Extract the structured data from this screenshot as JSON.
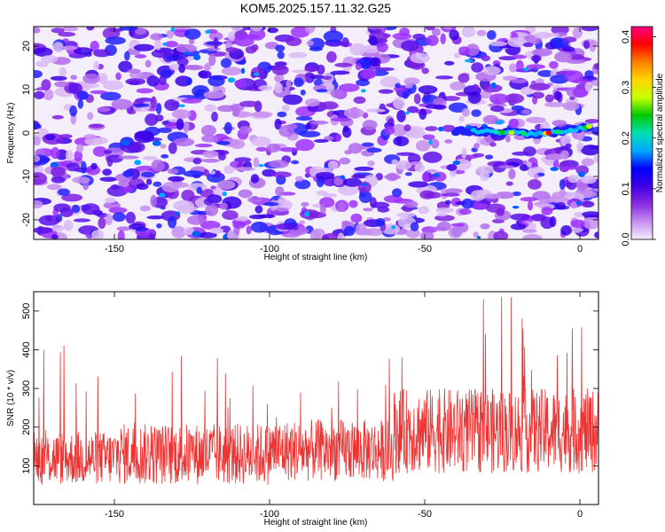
{
  "title": "KOM5.2025.157.11.32.G25",
  "chart_data": [
    {
      "type": "heatmap",
      "xlabel": "Height of straight line (km)",
      "ylabel": "Frequency (Hz)",
      "xlim": [
        -176,
        6
      ],
      "ylim": [
        -24.5,
        24.5
      ],
      "xticks": [
        -150,
        -100,
        -50,
        0
      ],
      "yticks": [
        -20,
        -10,
        0,
        10,
        20
      ],
      "colorbar": {
        "label": "Normalized spectral amplitude",
        "range": [
          0.0,
          0.42
        ],
        "ticks": [
          "0.0",
          "0.1",
          "0.2",
          "0.3",
          "0.4"
        ],
        "colors": [
          "#f4eefb",
          "#c68ef0",
          "#8a2be2",
          "#3f00e6",
          "#0000ff",
          "#00a8ff",
          "#00e0b0",
          "#00c800",
          "#c8ff00",
          "#ffd400",
          "#ff7f00",
          "#ff0000",
          "#ff0080"
        ]
      },
      "signal": {
        "description_points_x": [
          -40,
          -30,
          -20,
          -15,
          -10,
          -5,
          0,
          3
        ],
        "description_points_y": [
          0.5,
          0.3,
          0.0,
          -0.3,
          0.0,
          0.5,
          1.0,
          1.5
        ]
      }
    },
    {
      "type": "line",
      "xlabel": "Height of straight line (km)",
      "ylabel": "SNR (10 * v/v)",
      "xlim": [
        -176,
        6
      ],
      "ylim": [
        0,
        550
      ],
      "xticks": [
        -150,
        -100,
        -50,
        0
      ],
      "yticks": [
        100,
        200,
        300,
        400,
        500
      ],
      "series": [
        {
          "color": "#ee3333",
          "segments": [
            {
              "x_from": -176,
              "x_to": -150,
              "mean": 120,
              "spread": 70,
              "peak": 420
            },
            {
              "x_from": -150,
              "x_to": -100,
              "mean": 130,
              "spread": 80,
              "peak": 390
            },
            {
              "x_from": -100,
              "x_to": -60,
              "mean": 140,
              "spread": 80,
              "peak": 380
            },
            {
              "x_from": -60,
              "x_to": 6,
              "mean": 190,
              "spread": 110,
              "peak": 545
            }
          ]
        }
      ]
    }
  ]
}
